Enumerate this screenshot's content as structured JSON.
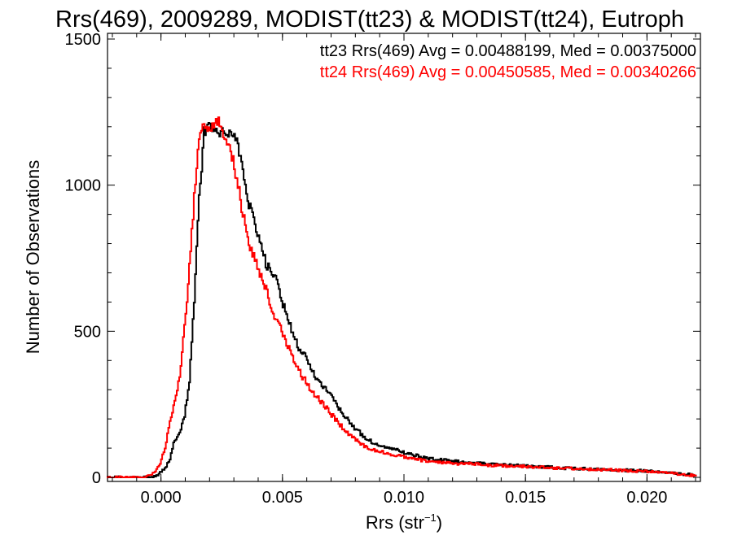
{
  "chart_data": {
    "type": "line",
    "title": "Rrs(469), 2009289, MODIST(tt23) & MODIST(tt24), Eutroph",
    "xlabel": "Rrs (str",
    "xlabel_sup": "−1",
    "xlabel_close": ")",
    "ylabel": "Number of Observations",
    "xlim": [
      -0.0022,
      0.0222
    ],
    "ylim": [
      0,
      1500
    ],
    "x_ticks": [
      0.0,
      0.005,
      0.01,
      0.015,
      0.02
    ],
    "x_tick_labels": [
      "0.000",
      "0.005",
      "0.010",
      "0.015",
      "0.020"
    ],
    "y_ticks": [
      0,
      500,
      1000,
      1500
    ],
    "y_tick_labels": [
      "0",
      "500",
      "1000",
      "1500"
    ],
    "grid": false,
    "legend_placement": "top-right",
    "annotations": [
      {
        "text": "tt23 Rrs(469) Avg = 0.00488199, Med = 0.00375000",
        "color": "#000000"
      },
      {
        "text": "tt24 Rrs(469) Avg = 0.00450585, Med = 0.00340266",
        "color": "#ff0000"
      }
    ],
    "series": [
      {
        "color": "#000000",
        "x": [
          -0.0022,
          -0.0005,
          -0.0002,
          0.0,
          0.0002,
          0.0004,
          0.0005,
          0.0006,
          0.0008,
          0.001,
          0.0012,
          0.0014,
          0.0016,
          0.0018,
          0.002,
          0.0022,
          0.0024,
          0.0026,
          0.0028,
          0.003,
          0.0032,
          0.0034,
          0.0036,
          0.0038,
          0.004,
          0.0042,
          0.0044,
          0.0046,
          0.0048,
          0.005,
          0.0052,
          0.0054,
          0.0056,
          0.0058,
          0.006,
          0.0062,
          0.0064,
          0.0066,
          0.0068,
          0.007,
          0.0075,
          0.008,
          0.0085,
          0.009,
          0.0095,
          0.01,
          0.011,
          0.012,
          0.013,
          0.014,
          0.015,
          0.016,
          0.017,
          0.018,
          0.019,
          0.02,
          0.021,
          0.022
        ],
        "values": [
          0,
          0,
          5,
          15,
          30,
          60,
          100,
          130,
          150,
          210,
          330,
          600,
          950,
          1180,
          1210,
          1190,
          1170,
          1180,
          1170,
          1180,
          1130,
          1040,
          950,
          890,
          840,
          780,
          720,
          700,
          670,
          600,
          560,
          500,
          460,
          430,
          410,
          380,
          340,
          320,
          300,
          280,
          220,
          170,
          130,
          110,
          100,
          85,
          65,
          55,
          50,
          42,
          40,
          35,
          30,
          28,
          25,
          22,
          15,
          8
        ]
      },
      {
        "color": "#ff0000",
        "x": [
          -0.0022,
          -0.0008,
          -0.0004,
          -0.0002,
          0.0,
          0.0002,
          0.0004,
          0.0006,
          0.0008,
          0.001,
          0.0012,
          0.0014,
          0.0016,
          0.0018,
          0.002,
          0.0022,
          0.0024,
          0.0026,
          0.0028,
          0.003,
          0.0032,
          0.0034,
          0.0036,
          0.0038,
          0.004,
          0.0042,
          0.0044,
          0.0046,
          0.0048,
          0.005,
          0.0052,
          0.0054,
          0.0056,
          0.0058,
          0.006,
          0.0062,
          0.0064,
          0.0066,
          0.0068,
          0.007,
          0.0075,
          0.008,
          0.0085,
          0.009,
          0.0095,
          0.01,
          0.011,
          0.012,
          0.013,
          0.014,
          0.015,
          0.016,
          0.017,
          0.018,
          0.019,
          0.02,
          0.021,
          0.022
        ],
        "values": [
          0,
          0,
          5,
          20,
          50,
          100,
          190,
          260,
          350,
          510,
          720,
          960,
          1150,
          1210,
          1200,
          1190,
          1230,
          1180,
          1140,
          1080,
          1000,
          900,
          830,
          760,
          720,
          680,
          630,
          580,
          530,
          500,
          460,
          420,
          390,
          350,
          330,
          300,
          280,
          260,
          240,
          220,
          170,
          130,
          100,
          90,
          80,
          70,
          55,
          48,
          45,
          40,
          38,
          33,
          30,
          27,
          24,
          20,
          14,
          6
        ]
      }
    ]
  }
}
